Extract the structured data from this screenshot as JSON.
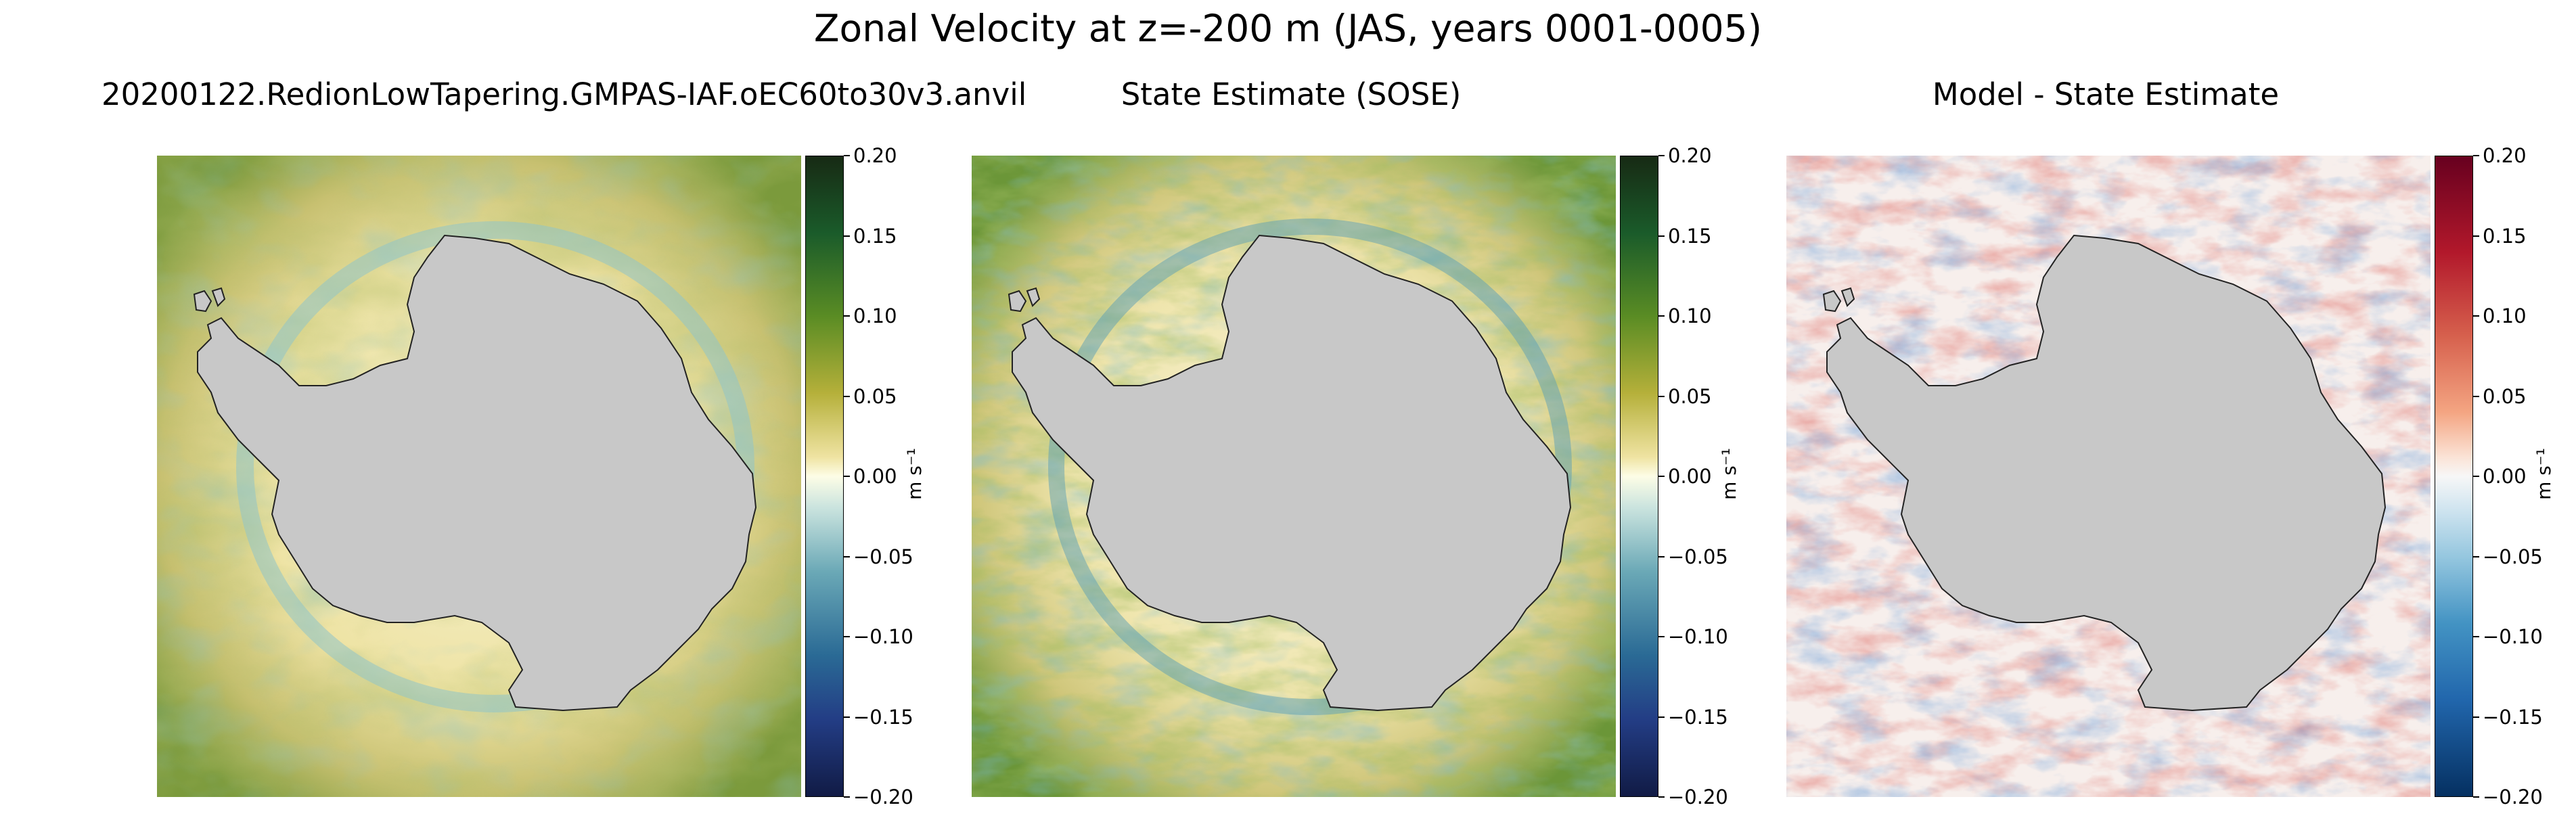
{
  "figure": {
    "title": "Zonal Velocity at z=-200 m (JAS, years 0001-0005)"
  },
  "chart_data": [
    {
      "type": "heatmap",
      "title": "20200122.RedionLowTapering.GMPAS-IAF.oEC60to30v3.anvil",
      "colormap": "green-yellow-white-blue (cmocean delta-like)",
      "colorbar": {
        "ticks": [
          "0.20",
          "0.15",
          "0.10",
          "0.05",
          "0.00",
          "−0.05",
          "−0.10",
          "−0.15",
          "−0.20"
        ],
        "vmin": -0.2,
        "vmax": 0.2,
        "label": "m s⁻¹"
      },
      "land_color": "#c8c8c8"
    },
    {
      "type": "heatmap",
      "title": "State Estimate (SOSE)",
      "colormap": "green-yellow-white-blue (cmocean delta-like)",
      "colorbar": {
        "ticks": [
          "0.20",
          "0.15",
          "0.10",
          "0.05",
          "0.00",
          "−0.05",
          "−0.10",
          "−0.15",
          "−0.20"
        ],
        "vmin": -0.2,
        "vmax": 0.2,
        "label": "m s⁻¹"
      },
      "land_color": "#c8c8c8"
    },
    {
      "type": "heatmap",
      "title": "Model - State Estimate",
      "colormap": "red-white-blue (RdBu_r-like)",
      "colorbar": {
        "ticks": [
          "0.20",
          "0.15",
          "0.10",
          "0.05",
          "0.00",
          "−0.05",
          "−0.10",
          "−0.15",
          "−0.20"
        ],
        "vmin": -0.2,
        "vmax": 0.2,
        "label": "m s⁻¹"
      },
      "land_color": "#c8c8c8"
    }
  ]
}
